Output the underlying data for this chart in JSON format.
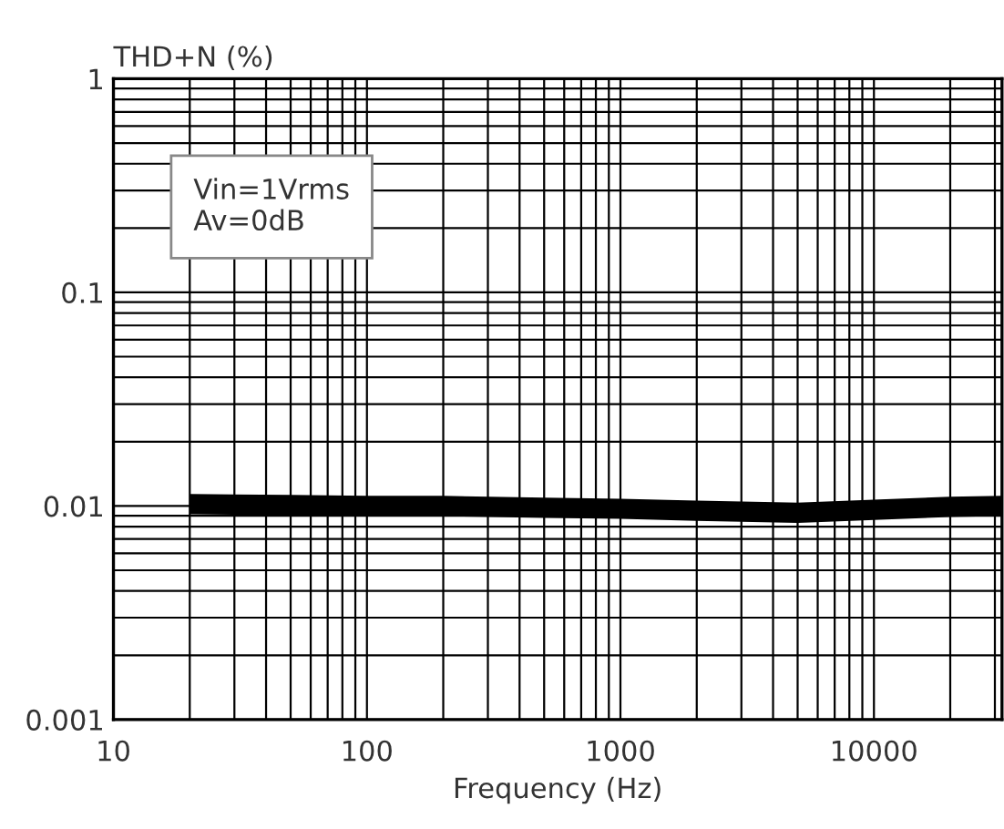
{
  "chart_data": {
    "type": "line",
    "xlabel": "Frequency (Hz)",
    "ylabel": "THD+N (%)",
    "log": "xy",
    "xlim": [
      10,
      32000
    ],
    "ylim": [
      0.001,
      1
    ],
    "xticks": [
      10,
      100,
      1000,
      10000
    ],
    "yticks": [
      0.001,
      0.01,
      0.1,
      1
    ],
    "grid": true,
    "marker": "none",
    "line_style": "solid",
    "annotations": [
      "Vin=1Vrms\nAv=0dB"
    ],
    "series": [
      {
        "color": "#000000",
        "x": [
          20,
          50,
          100,
          200,
          500,
          1000,
          2000,
          5000,
          10000,
          20000,
          32000
        ],
        "values": [
          0.0102,
          0.0101,
          0.01,
          0.01,
          0.0098,
          0.0097,
          0.0095,
          0.0093,
          0.0096,
          0.0099,
          0.01
        ]
      }
    ]
  }
}
